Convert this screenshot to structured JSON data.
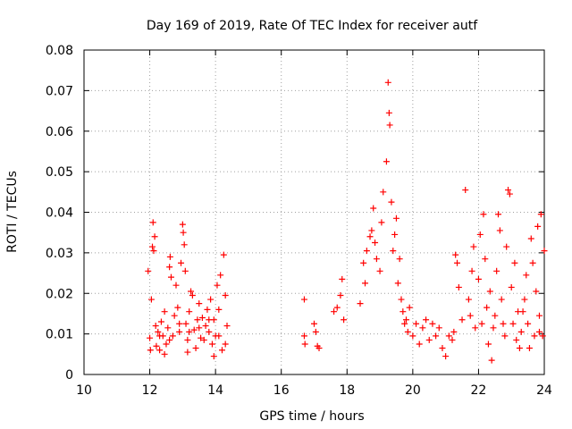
{
  "chart_data": {
    "type": "scatter",
    "title": "Day 169 of 2019, Rate Of TEC Index for receiver autf",
    "xlabel": "GPS time / hours",
    "ylabel": "ROTI / TECUs",
    "xlim": [
      10,
      24
    ],
    "ylim": [
      0,
      0.08
    ],
    "x_ticks": [
      10,
      12,
      14,
      16,
      18,
      20,
      22,
      24
    ],
    "x_tick_labels": [
      "10",
      "12",
      "14",
      "16",
      "18",
      "20",
      "22",
      "24"
    ],
    "y_ticks": [
      0,
      0.01,
      0.02,
      0.03,
      0.04,
      0.05,
      0.06,
      0.07,
      0.08
    ],
    "y_tick_labels": [
      "0",
      "0.01",
      "0.02",
      "0.03",
      "0.04",
      "0.05",
      "0.06",
      "0.07",
      "0.08"
    ],
    "grid": true,
    "marker": "+",
    "series": [
      {
        "name": "ROTI",
        "color": "#ff0000",
        "points": [
          [
            11.95,
            0.0255
          ],
          [
            12.0,
            0.009
          ],
          [
            12.02,
            0.006
          ],
          [
            12.05,
            0.0185
          ],
          [
            12.08,
            0.0315
          ],
          [
            12.1,
            0.0375
          ],
          [
            12.12,
            0.0305
          ],
          [
            12.15,
            0.034
          ],
          [
            12.18,
            0.012
          ],
          [
            12.2,
            0.007
          ],
          [
            12.25,
            0.0105
          ],
          [
            12.3,
            0.006
          ],
          [
            12.35,
            0.013
          ],
          [
            12.4,
            0.0095
          ],
          [
            12.45,
            0.0155
          ],
          [
            12.5,
            0.0075
          ],
          [
            12.55,
            0.0115
          ],
          [
            12.6,
            0.0265
          ],
          [
            12.62,
            0.029
          ],
          [
            12.65,
            0.024
          ],
          [
            12.7,
            0.0095
          ],
          [
            12.75,
            0.0145
          ],
          [
            12.8,
            0.022
          ],
          [
            12.85,
            0.0165
          ],
          [
            12.9,
            0.0105
          ],
          [
            12.95,
            0.0275
          ],
          [
            13.0,
            0.037
          ],
          [
            13.02,
            0.035
          ],
          [
            13.05,
            0.032
          ],
          [
            13.08,
            0.0255
          ],
          [
            13.1,
            0.0125
          ],
          [
            13.15,
            0.0085
          ],
          [
            13.2,
            0.0155
          ],
          [
            13.25,
            0.0205
          ],
          [
            13.3,
            0.0195
          ],
          [
            13.35,
            0.011
          ],
          [
            13.4,
            0.0065
          ],
          [
            13.45,
            0.0135
          ],
          [
            13.5,
            0.0175
          ],
          [
            13.55,
            0.009
          ],
          [
            13.6,
            0.014
          ],
          [
            13.65,
            0.0085
          ],
          [
            13.7,
            0.012
          ],
          [
            13.75,
            0.016
          ],
          [
            13.8,
            0.0105
          ],
          [
            13.85,
            0.0185
          ],
          [
            13.9,
            0.0075
          ],
          [
            13.95,
            0.0135
          ],
          [
            14.0,
            0.0095
          ],
          [
            14.05,
            0.022
          ],
          [
            14.1,
            0.016
          ],
          [
            14.15,
            0.0245
          ],
          [
            14.2,
            0.006
          ],
          [
            14.25,
            0.0295
          ],
          [
            14.3,
            0.0195
          ],
          [
            14.35,
            0.012
          ],
          [
            12.3,
            0.0095
          ],
          [
            12.6,
            0.0085
          ],
          [
            12.9,
            0.0125
          ],
          [
            13.2,
            0.0105
          ],
          [
            13.5,
            0.0115
          ],
          [
            13.8,
            0.0135
          ],
          [
            14.1,
            0.0095
          ],
          [
            14.3,
            0.0075
          ],
          [
            13.15,
            0.0055
          ],
          [
            12.45,
            0.005
          ],
          [
            13.95,
            0.0045
          ],
          [
            16.7,
            0.0185
          ],
          [
            16.7,
            0.0095
          ],
          [
            16.72,
            0.0075
          ],
          [
            17.0,
            0.0125
          ],
          [
            17.05,
            0.0105
          ],
          [
            17.1,
            0.007
          ],
          [
            17.15,
            0.0065
          ],
          [
            17.6,
            0.0155
          ],
          [
            17.7,
            0.0165
          ],
          [
            17.8,
            0.0195
          ],
          [
            17.85,
            0.0235
          ],
          [
            17.9,
            0.0135
          ],
          [
            18.4,
            0.0175
          ],
          [
            18.5,
            0.0275
          ],
          [
            18.55,
            0.0225
          ],
          [
            18.6,
            0.0305
          ],
          [
            18.7,
            0.034
          ],
          [
            18.75,
            0.0355
          ],
          [
            18.8,
            0.041
          ],
          [
            18.85,
            0.0325
          ],
          [
            18.9,
            0.0285
          ],
          [
            19.0,
            0.0255
          ],
          [
            19.05,
            0.0375
          ],
          [
            19.1,
            0.045
          ],
          [
            19.2,
            0.0525
          ],
          [
            19.25,
            0.072
          ],
          [
            19.28,
            0.0645
          ],
          [
            19.3,
            0.0615
          ],
          [
            19.35,
            0.0425
          ],
          [
            19.4,
            0.0305
          ],
          [
            19.45,
            0.0345
          ],
          [
            19.5,
            0.0385
          ],
          [
            19.55,
            0.0225
          ],
          [
            19.6,
            0.0285
          ],
          [
            19.65,
            0.0185
          ],
          [
            19.7,
            0.0155
          ],
          [
            19.75,
            0.0125
          ],
          [
            19.8,
            0.0135
          ],
          [
            19.85,
            0.0105
          ],
          [
            19.9,
            0.0165
          ],
          [
            20.0,
            0.0095
          ],
          [
            20.1,
            0.0125
          ],
          [
            20.2,
            0.0075
          ],
          [
            20.3,
            0.0115
          ],
          [
            20.4,
            0.0135
          ],
          [
            20.5,
            0.0085
          ],
          [
            20.6,
            0.0125
          ],
          [
            20.7,
            0.0095
          ],
          [
            20.8,
            0.0115
          ],
          [
            20.9,
            0.0065
          ],
          [
            21.0,
            0.0045
          ],
          [
            21.1,
            0.0095
          ],
          [
            21.2,
            0.0085
          ],
          [
            21.3,
            0.0295
          ],
          [
            21.35,
            0.0275
          ],
          [
            21.4,
            0.0215
          ],
          [
            21.5,
            0.0135
          ],
          [
            21.6,
            0.0455
          ],
          [
            21.7,
            0.0185
          ],
          [
            21.8,
            0.0255
          ],
          [
            21.85,
            0.0315
          ],
          [
            21.9,
            0.0115
          ],
          [
            22.0,
            0.0235
          ],
          [
            22.05,
            0.0345
          ],
          [
            22.1,
            0.0125
          ],
          [
            22.15,
            0.0395
          ],
          [
            22.2,
            0.0285
          ],
          [
            22.25,
            0.0165
          ],
          [
            22.3,
            0.0075
          ],
          [
            22.35,
            0.0205
          ],
          [
            22.4,
            0.0035
          ],
          [
            22.5,
            0.0145
          ],
          [
            22.55,
            0.0255
          ],
          [
            22.6,
            0.0395
          ],
          [
            22.65,
            0.0355
          ],
          [
            22.7,
            0.0185
          ],
          [
            22.8,
            0.0095
          ],
          [
            22.85,
            0.0315
          ],
          [
            22.9,
            0.0455
          ],
          [
            22.95,
            0.0445
          ],
          [
            23.0,
            0.0215
          ],
          [
            23.05,
            0.0125
          ],
          [
            23.1,
            0.0275
          ],
          [
            23.2,
            0.0155
          ],
          [
            23.25,
            0.0065
          ],
          [
            23.3,
            0.0105
          ],
          [
            23.4,
            0.0185
          ],
          [
            23.45,
            0.0245
          ],
          [
            23.5,
            0.0125
          ],
          [
            23.6,
            0.0335
          ],
          [
            23.65,
            0.0275
          ],
          [
            23.7,
            0.0095
          ],
          [
            23.75,
            0.0205
          ],
          [
            23.8,
            0.0365
          ],
          [
            23.85,
            0.0145
          ],
          [
            23.9,
            0.0395
          ],
          [
            23.95,
            0.0095
          ],
          [
            24.0,
            0.0305
          ],
          [
            21.25,
            0.0105
          ],
          [
            21.75,
            0.0145
          ],
          [
            22.45,
            0.0115
          ],
          [
            22.75,
            0.0125
          ],
          [
            23.15,
            0.0085
          ],
          [
            23.55,
            0.0065
          ],
          [
            23.35,
            0.0155
          ],
          [
            23.85,
            0.0105
          ]
        ]
      }
    ]
  }
}
